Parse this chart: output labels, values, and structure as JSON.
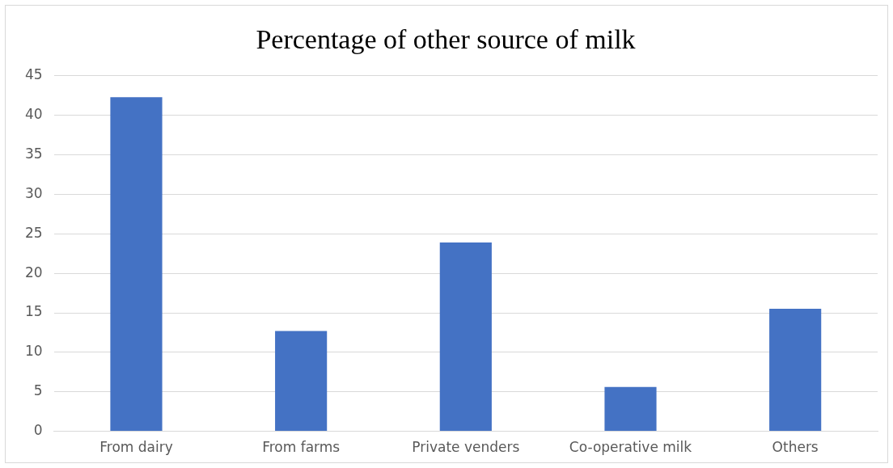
{
  "chart_data": {
    "type": "bar",
    "title": "Percentage of other source of milk",
    "categories": [
      "From dairy",
      "From farms",
      "Private venders",
      "Co-operative milk",
      "Others"
    ],
    "values": [
      42.3,
      12.7,
      23.9,
      5.6,
      15.5
    ],
    "color": "#4472c4",
    "ylim": [
      0,
      45
    ],
    "yticks": [
      0,
      5,
      10,
      15,
      20,
      25,
      30,
      35,
      40,
      45
    ],
    "grid": "y",
    "legend": false
  }
}
